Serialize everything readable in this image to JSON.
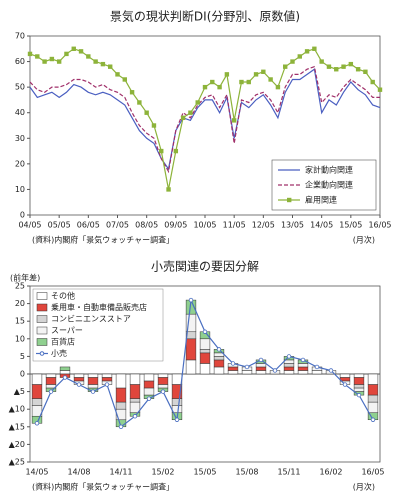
{
  "chart_data": [
    {
      "type": "line",
      "title": "景気の現状判断DI(分野別、原数値)",
      "categories": [
        "04/05",
        null,
        null,
        null,
        "05/05",
        null,
        null,
        null,
        "06/05",
        null,
        null,
        null,
        "07/05",
        null,
        null,
        null,
        "08/05",
        null,
        null,
        null,
        "09/05",
        null,
        null,
        null,
        "10/05",
        null,
        null,
        null,
        "11/05",
        null,
        null,
        null,
        "12/05",
        null,
        null,
        null,
        "13/05",
        null,
        null,
        null,
        "14/05",
        null,
        null,
        null,
        "15/05",
        null,
        null,
        null,
        "16/05"
      ],
      "series": [
        {
          "name": "家計動向関連",
          "color": "#4a5fc1",
          "values": [
            50,
            46,
            47,
            48,
            46,
            48,
            51,
            50,
            48,
            47,
            48,
            47,
            45,
            43,
            38,
            33,
            30,
            28,
            22,
            18,
            33,
            38,
            37,
            42,
            45,
            45,
            40,
            46,
            30,
            44,
            42,
            45,
            47,
            43,
            38,
            48,
            53,
            53,
            55,
            57,
            40,
            45,
            43,
            48,
            52,
            49,
            47,
            43,
            42
          ]
        },
        {
          "name": "企業動向関連",
          "color": "#a0306a",
          "dash": true,
          "values": [
            52,
            49,
            48,
            50,
            50,
            51,
            53,
            53,
            52,
            50,
            51,
            49,
            48,
            46,
            40,
            35,
            32,
            30,
            22,
            17,
            33,
            40,
            38,
            43,
            46,
            47,
            42,
            47,
            28,
            45,
            44,
            47,
            48,
            45,
            40,
            50,
            55,
            55,
            57,
            58,
            44,
            47,
            46,
            50,
            53,
            51,
            49,
            46,
            46
          ]
        },
        {
          "name": "雇用関連",
          "color": "#8db33a",
          "marker": "square",
          "values": [
            63,
            62,
            60,
            61,
            60,
            63,
            65,
            64,
            62,
            60,
            59,
            58,
            55,
            53,
            48,
            44,
            40,
            35,
            25,
            10,
            25,
            38,
            40,
            44,
            50,
            52,
            50,
            55,
            37,
            52,
            52,
            55,
            56,
            53,
            50,
            58,
            60,
            62,
            64,
            65,
            60,
            58,
            57,
            58,
            59,
            57,
            56,
            52,
            49
          ]
        }
      ],
      "ylim": [
        0,
        70
      ],
      "yticks": [
        0,
        10,
        20,
        30,
        40,
        50,
        60,
        70
      ],
      "legend": "lower-right",
      "source": "(資料)内閣府「景気ウォッチャー調査」",
      "unit": "(月次)"
    },
    {
      "type": "stacked-bar",
      "title": "小売関連の要因分解",
      "ylabel": "(前年差)",
      "categories": [
        "14/05",
        null,
        null,
        "14/08",
        null,
        null,
        "14/11",
        null,
        null,
        "15/02",
        null,
        null,
        "15/05",
        null,
        null,
        "15/08",
        null,
        null,
        "15/11",
        null,
        null,
        "16/02",
        null,
        null,
        "16/05"
      ],
      "series": [
        {
          "name": "その他",
          "color": "#ffffff",
          "values": [
            -3,
            -1,
            1,
            -1,
            -1,
            -1,
            -4,
            -3,
            -2,
            -1,
            -3,
            4,
            3,
            2,
            1,
            1,
            1,
            0,
            1,
            1,
            1,
            0,
            -1,
            -1,
            -3
          ]
        },
        {
          "name": "乗用車・自動車備品販売店",
          "color": "#e0463c",
          "values": [
            -4,
            -2,
            -1,
            -1,
            -2,
            -1,
            -4,
            -4,
            -2,
            -2,
            -4,
            6,
            3,
            2,
            1,
            0,
            1,
            0,
            1,
            1,
            0,
            0,
            -1,
            -2,
            -3
          ]
        },
        {
          "name": "コンビニエンスストア",
          "color": "#d4d4d4",
          "values": [
            -2,
            0,
            0,
            0,
            0,
            0,
            -2,
            -1,
            0,
            0,
            -2,
            2,
            1,
            1,
            0,
            0,
            0,
            0,
            1,
            0,
            0,
            0,
            0,
            -1,
            -2
          ]
        },
        {
          "name": "スーパー",
          "color": "#f3f3f3",
          "values": [
            -3,
            -1,
            0,
            -1,
            -1,
            -1,
            -3,
            -3,
            -2,
            -1,
            -2,
            5,
            3,
            1,
            1,
            1,
            1,
            1,
            1,
            1,
            1,
            1,
            -1,
            -1,
            -3
          ]
        },
        {
          "name": "百貨店",
          "color": "#8fd08f",
          "values": [
            -2,
            -1,
            1,
            0,
            -1,
            0,
            -2,
            -1,
            -1,
            -1,
            -2,
            4,
            2,
            1,
            0,
            0,
            1,
            0,
            1,
            1,
            0,
            0,
            0,
            -1,
            -2
          ]
        },
        {
          "name": "小売",
          "color": "#4a6fc1",
          "kind": "line",
          "values": [
            -14,
            -5,
            -1,
            -3,
            -5,
            -3,
            -15,
            -12,
            -7,
            -5,
            -13,
            21,
            12,
            7,
            3,
            2,
            4,
            1,
            5,
            4,
            2,
            1,
            -3,
            -6,
            -13
          ]
        }
      ],
      "ylim": [
        -25,
        25
      ],
      "yticks": [
        25,
        20,
        15,
        10,
        5,
        0,
        {
          "value": -5,
          "label": "▲5"
        },
        {
          "value": -10,
          "label": "▲10"
        },
        {
          "value": -15,
          "label": "▲15"
        },
        {
          "value": -20,
          "label": "▲20"
        },
        {
          "value": -25,
          "label": "▲25"
        }
      ],
      "legend": "upper-left",
      "source": "(資料)内閣府「景気ウォッチャー調査」",
      "unit": "(月次)"
    }
  ]
}
